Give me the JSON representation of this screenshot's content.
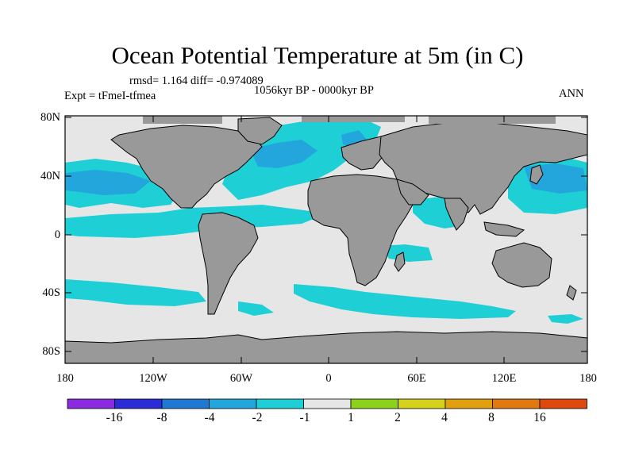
{
  "title": "Ocean Potential Temperature at 5m (in C)",
  "stats": "rmsd= 1.164 diff= -0.974089",
  "experiment": "Expt = tFmeI-tfmea",
  "period": "1056kyr BP - 0000kyr BP",
  "season": "ANN",
  "axes": {
    "y_ticks": [
      "80N",
      "40N",
      "0",
      "40S",
      "80S"
    ],
    "x_ticks": [
      "180",
      "120W",
      "60W",
      "0",
      "60E",
      "120E",
      "180"
    ]
  },
  "colorbar": {
    "colors": [
      "#8a2be2",
      "#2b2bd8",
      "#1f78d1",
      "#22a6dc",
      "#1ed0d6",
      "#e6e6e6",
      "#8cd11a",
      "#d4d21a",
      "#e0a010",
      "#e07a10",
      "#de4a0e"
    ],
    "labels": [
      "-16",
      "-8",
      "-4",
      "-2",
      "-1",
      "1",
      "2",
      "4",
      "8",
      "16"
    ]
  },
  "colors": {
    "land": "#999999",
    "ocean_neutral": "#e6e6e6",
    "anomaly_cool_1": "#1ed0d6",
    "anomaly_cool_2": "#22a6dc"
  }
}
